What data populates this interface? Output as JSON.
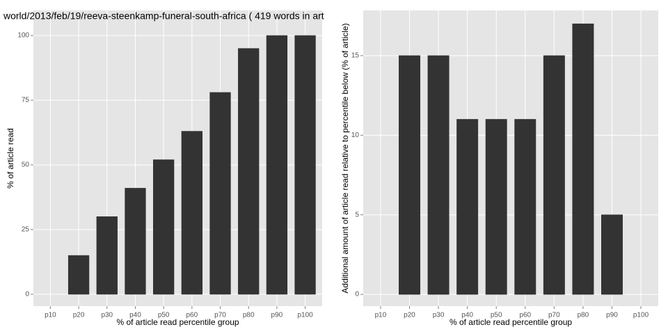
{
  "chart_data": [
    {
      "type": "bar",
      "title": "world/2013/feb/19/reeva-steenkamp-funeral-south-africa ( 419 words in art",
      "x_label": "% of article read percentile group",
      "y_label": "% of article read",
      "categories": [
        "p10",
        "p20",
        "p30",
        "p40",
        "p50",
        "p60",
        "p70",
        "p80",
        "p90",
        "p100"
      ],
      "values": [
        0,
        15,
        30,
        41,
        52,
        63,
        78,
        95,
        100,
        100
      ],
      "color": "#333333",
      "ylim": [
        -4.6,
        109.7
      ],
      "yticks": [
        0,
        25,
        50,
        75,
        100
      ],
      "grid": true
    },
    {
      "type": "bar",
      "x_label": "% of article read percentile group",
      "y_label": "Additional amount of article read relative to percentile below (% of article)",
      "categories": [
        "p10",
        "p20",
        "p30",
        "p40",
        "p50",
        "p60",
        "p70",
        "p80",
        "p90",
        "p100"
      ],
      "values": [
        0,
        15,
        15,
        11,
        11,
        11,
        15,
        17,
        5,
        0
      ],
      "color": "#333333",
      "ylim": [
        -0.74,
        17.84
      ],
      "yticks": [
        0,
        5,
        10,
        15
      ],
      "grid": true
    }
  ]
}
